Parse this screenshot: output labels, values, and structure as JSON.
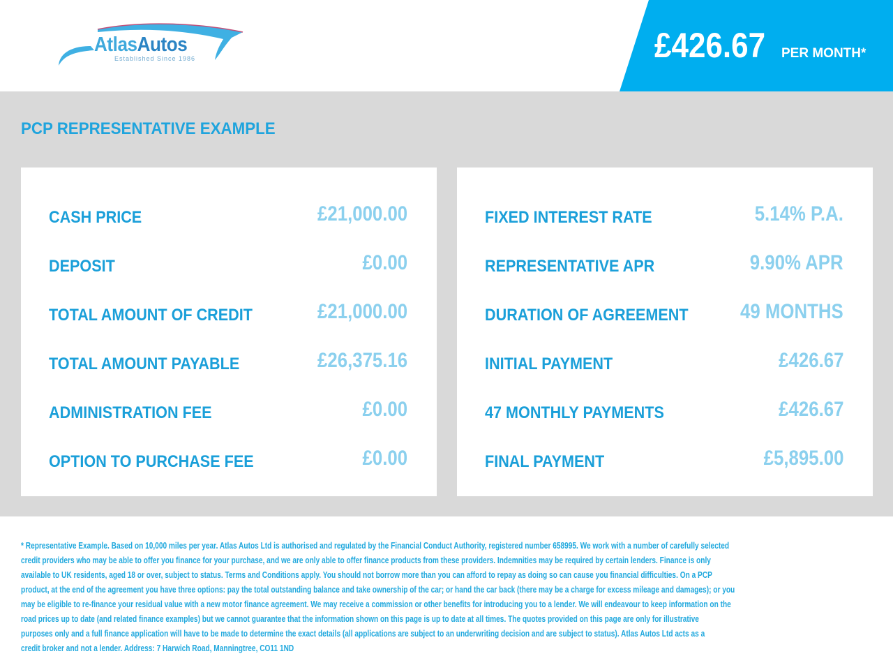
{
  "logo": {
    "name_part1": "Atlas",
    "name_part2": "Autos",
    "tagline": "Established Since 1986"
  },
  "header": {
    "price": "£426.67",
    "per_month": "PER MONTH*"
  },
  "title": "PCP REPRESENTATIVE EXAMPLE",
  "left": [
    {
      "label": "CASH PRICE",
      "value": "£21,000.00"
    },
    {
      "label": "DEPOSIT",
      "value": "£0.00"
    },
    {
      "label": "TOTAL AMOUNT OF CREDIT",
      "value": "£21,000.00"
    },
    {
      "label": "TOTAL AMOUNT PAYABLE",
      "value": "£26,375.16"
    },
    {
      "label": "ADMINISTRATION FEE",
      "value": "£0.00"
    },
    {
      "label": "OPTION TO PURCHASE FEE",
      "value": "£0.00"
    }
  ],
  "right": [
    {
      "label": "FIXED INTEREST RATE",
      "value": "5.14% P.A."
    },
    {
      "label": "REPRESENTATIVE APR",
      "value": "9.90% APR"
    },
    {
      "label": "DURATION OF AGREEMENT",
      "value": "49 MONTHS"
    },
    {
      "label": "INITIAL PAYMENT",
      "value": "£426.67"
    },
    {
      "label": "47 MONTHLY PAYMENTS",
      "value": "£426.67"
    },
    {
      "label": "FINAL PAYMENT",
      "value": "£5,895.00"
    }
  ],
  "footer": [
    "* Representative Example. Based on 10,000 miles per year. Atlas Autos Ltd is authorised and regulated by the Financial Conduct Authority, registered number 658995. We work with a number of carefully selected",
    "credit providers who may be able to offer you finance for your purchase, and we are only able to offer finance products from these providers. Indemnities may be required by certain lenders. Finance is only",
    "available to UK residents, aged 18 or over, subject to status. Terms and Conditions apply. You should not borrow more than you can afford to repay as doing so can cause you financial difficulties. On a PCP",
    "product, at the end of the agreement you have three options: pay the total outstanding balance and take ownership of the car; or hand the car back (there may be a charge for excess mileage and damages); or you",
    "may be eligible to re-finance your residual value with a new motor finance agreement. We may receive a commission or other benefits for introducing you to a lender. We will endeavour to keep information on the",
    "road prices up to date (and related finance examples) but we cannot guarantee that the information shown on this page is up to date at all times. The quotes provided on this page are only for illustrative",
    "purposes only and a full finance application will have to be made to determine the exact details (all applications are subject to an underwriting decision and are subject to status). Atlas Autos Ltd acts as a",
    "credit broker and not a lender. Address: 7 Harwich Road, Manningtree, CO11 1ND"
  ],
  "colors": {
    "accent": "#00aeef",
    "label": "#1a9fd9",
    "value": "#8bd0ee",
    "background": "#d9d9d9"
  }
}
